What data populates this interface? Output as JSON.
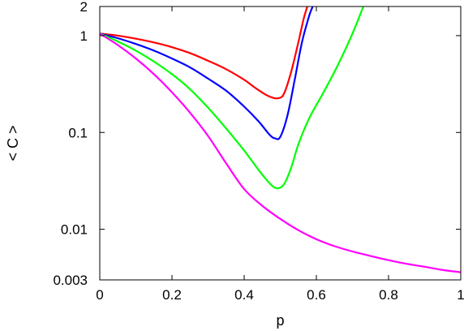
{
  "chart_data": {
    "type": "line",
    "xlabel": "p",
    "ylabel": "< C >",
    "xlim": [
      0,
      1
    ],
    "ylim": [
      0.003,
      2
    ],
    "yscale": "log",
    "xticks": [
      {
        "value": 0,
        "label": "0"
      },
      {
        "value": 0.2,
        "label": "0.2"
      },
      {
        "value": 0.4,
        "label": "0.4"
      },
      {
        "value": 0.6,
        "label": "0.6"
      },
      {
        "value": 0.8,
        "label": "0.8"
      },
      {
        "value": 1,
        "label": "1"
      }
    ],
    "yticks": [
      {
        "value": 0.003,
        "label": "0.003"
      },
      {
        "value": 0.01,
        "label": "0.01"
      },
      {
        "value": 0.1,
        "label": "0.1"
      },
      {
        "value": 1,
        "label": "1"
      },
      {
        "value": 2,
        "label": "2"
      }
    ],
    "grid": false,
    "legend": "none",
    "series": [
      {
        "color": "#ff0000",
        "points": [
          [
            0,
            1.05
          ],
          [
            0.05,
            1.0
          ],
          [
            0.1,
            0.93
          ],
          [
            0.15,
            0.85
          ],
          [
            0.2,
            0.76
          ],
          [
            0.25,
            0.66
          ],
          [
            0.3,
            0.55
          ],
          [
            0.35,
            0.45
          ],
          [
            0.4,
            0.35
          ],
          [
            0.43,
            0.29
          ],
          [
            0.46,
            0.245
          ],
          [
            0.48,
            0.228
          ],
          [
            0.495,
            0.226
          ],
          [
            0.51,
            0.25
          ],
          [
            0.53,
            0.42
          ],
          [
            0.55,
            0.85
          ],
          [
            0.565,
            1.5
          ],
          [
            0.575,
            2.0
          ]
        ]
      },
      {
        "color": "#0000ff",
        "points": [
          [
            0,
            1.05
          ],
          [
            0.05,
            0.94
          ],
          [
            0.1,
            0.82
          ],
          [
            0.15,
            0.7
          ],
          [
            0.2,
            0.58
          ],
          [
            0.25,
            0.47
          ],
          [
            0.3,
            0.36
          ],
          [
            0.35,
            0.27
          ],
          [
            0.4,
            0.185
          ],
          [
            0.44,
            0.13
          ],
          [
            0.47,
            0.095
          ],
          [
            0.485,
            0.087
          ],
          [
            0.5,
            0.09
          ],
          [
            0.52,
            0.15
          ],
          [
            0.54,
            0.35
          ],
          [
            0.56,
            0.85
          ],
          [
            0.58,
            1.6
          ],
          [
            0.59,
            2.0
          ]
        ]
      },
      {
        "color": "#00ff00",
        "points": [
          [
            0,
            1.05
          ],
          [
            0.05,
            0.87
          ],
          [
            0.1,
            0.7
          ],
          [
            0.15,
            0.54
          ],
          [
            0.2,
            0.4
          ],
          [
            0.25,
            0.28
          ],
          [
            0.3,
            0.18
          ],
          [
            0.35,
            0.11
          ],
          [
            0.4,
            0.065
          ],
          [
            0.44,
            0.041
          ],
          [
            0.47,
            0.03
          ],
          [
            0.49,
            0.0265
          ],
          [
            0.51,
            0.029
          ],
          [
            0.53,
            0.043
          ],
          [
            0.55,
            0.075
          ],
          [
            0.58,
            0.14
          ],
          [
            0.62,
            0.26
          ],
          [
            0.66,
            0.5
          ],
          [
            0.7,
            1.05
          ],
          [
            0.73,
            2.0
          ]
        ]
      },
      {
        "color": "#ff00ff",
        "points": [
          [
            0,
            1.05
          ],
          [
            0.05,
            0.8
          ],
          [
            0.1,
            0.58
          ],
          [
            0.15,
            0.4
          ],
          [
            0.2,
            0.26
          ],
          [
            0.25,
            0.16
          ],
          [
            0.3,
            0.092
          ],
          [
            0.35,
            0.048
          ],
          [
            0.4,
            0.026
          ],
          [
            0.45,
            0.0175
          ],
          [
            0.5,
            0.0128
          ],
          [
            0.55,
            0.0098
          ],
          [
            0.6,
            0.0079
          ],
          [
            0.65,
            0.0067
          ],
          [
            0.7,
            0.0059
          ],
          [
            0.75,
            0.0053
          ],
          [
            0.8,
            0.0048
          ],
          [
            0.85,
            0.0044
          ],
          [
            0.9,
            0.0041
          ],
          [
            0.95,
            0.0038
          ],
          [
            1.0,
            0.0036
          ]
        ]
      }
    ]
  }
}
